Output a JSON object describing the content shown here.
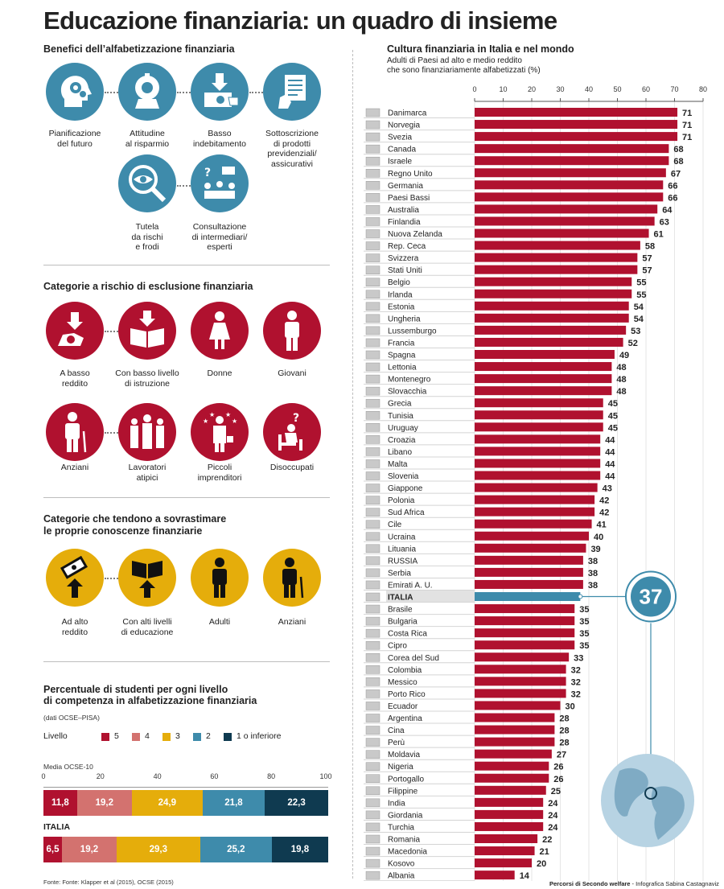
{
  "title": "Educazione finanziaria: un quadro di insieme",
  "benefits": {
    "title": "Benefici dell’alfabetizzazione finanziaria",
    "items": [
      {
        "label": "Pianificazione\ndel futuro",
        "icon": "head-gears-icon"
      },
      {
        "label": "Attitudine\nal risparmio",
        "icon": "piggy-bank-icon"
      },
      {
        "label": "Basso\nindebitamento",
        "icon": "hand-banknote-icon"
      },
      {
        "label": "Sottoscrizione\ndi prodotti\nprevidenziali/\nassicurativi",
        "icon": "document-contract-icon"
      },
      {
        "label": "Tutela\nda rischi\ne frodi",
        "icon": "magnifier-eye-icon"
      },
      {
        "label": "Consultazione\ndi intermediari/\nesperti",
        "icon": "consultation-meeting-icon"
      }
    ]
  },
  "risk": {
    "title": "Categorie a rischio di esclusione finanziaria",
    "items": [
      {
        "label": "A basso\nreddito",
        "icon": "hand-coin-icon"
      },
      {
        "label": "Con basso livello\ndi istruzione",
        "icon": "open-book-icon"
      },
      {
        "label": "Donne",
        "icon": "woman-icon"
      },
      {
        "label": "Giovani",
        "icon": "young-person-icon"
      },
      {
        "label": "Anziani",
        "icon": "elderly-cane-icon"
      },
      {
        "label": "Lavoratori\natipici",
        "icon": "workers-group-icon"
      },
      {
        "label": "Piccoli\nimprenditori",
        "icon": "entrepreneur-stars-icon"
      },
      {
        "label": "Disoccupati",
        "icon": "unemployed-question-icon"
      }
    ]
  },
  "overestimate": {
    "title_line1": "Categorie che tendono a sovrastimare",
    "title_line2": "le proprie conoscenze finanziarie",
    "items": [
      {
        "label": "Ad alto\nreddito",
        "icon": "banknotes-up-icon"
      },
      {
        "label": "Con alti livelli\ndi educazione",
        "icon": "book-up-icon"
      },
      {
        "label": "Adulti",
        "icon": "adult-person-icon"
      },
      {
        "label": "Anziani",
        "icon": "elderly-cane-icon"
      }
    ]
  },
  "students": {
    "title_line1": "Percentuale di studenti per ogni livello",
    "title_line2": "di competenza in alfabetizzazione finanziaria",
    "note": "(dati OCSE–PISA)",
    "legend_label": "Livello",
    "levels": [
      {
        "name": "5",
        "color": "#b0112f"
      },
      {
        "name": "4",
        "color": "#d3726f"
      },
      {
        "name": "3",
        "color": "#e5ad0b"
      },
      {
        "name": "2",
        "color": "#3e8bab"
      },
      {
        "name": "1 o inferiore",
        "color": "#0f3a50"
      }
    ],
    "axis_ticks": [
      "0",
      "20",
      "40",
      "60",
      "80",
      "100"
    ],
    "rows": [
      {
        "label": "Media OCSE-10",
        "values": [
          11.8,
          19.2,
          24.9,
          21.8,
          22.3
        ],
        "texts": [
          "11,8",
          "19,2",
          "24,9",
          "21,8",
          "22,3"
        ]
      },
      {
        "label": "ITALIA",
        "values": [
          6.5,
          19.2,
          29.3,
          25.2,
          19.8
        ],
        "texts": [
          "6,5",
          "19,2",
          "29,3",
          "25,2",
          "19,8"
        ]
      }
    ]
  },
  "source": "Fonte: Fonte: Klapper et al (2015), OCSE (2015)",
  "credit_bold": "Percorsi di Secondo welfare",
  "credit_rest": " - Infografica Sabina Castagnaviz",
  "chart_data": {
    "type": "bar",
    "orientation": "horizontal",
    "title": "Cultura finanziaria in Italia e nel mondo",
    "subtitle_line1": "Adulti di Paesi ad alto e medio reddito",
    "subtitle_line2": "che sono finanziariamente alfabetizzati (%)",
    "xlim": [
      0,
      80
    ],
    "x_ticks": [
      0,
      10,
      20,
      30,
      40,
      50,
      60,
      70,
      80
    ],
    "highlight": "ITALIA",
    "highlight_value_label": "37",
    "bar_color": "#b0112f",
    "highlight_color": "#3e8bab",
    "categories": [
      "Danimarca",
      "Norvegia",
      "Svezia",
      "Canada",
      "Israele",
      "Regno Unito",
      "Germania",
      "Paesi Bassi",
      "Australia",
      "Finlandia",
      "Nuova Zelanda",
      "Rep. Ceca",
      "Svizzera",
      "Stati Uniti",
      "Belgio",
      "Irlanda",
      "Estonia",
      "Ungheria",
      "Lussemburgo",
      "Francia",
      "Spagna",
      "Lettonia",
      "Montenegro",
      "Slovacchia",
      "Grecia",
      "Tunisia",
      "Uruguay",
      "Croazia",
      "Libano",
      "Malta",
      "Slovenia",
      "Giappone",
      "Polonia",
      "Sud Africa",
      "Cile",
      "Ucraina",
      "Lituania",
      "RUSSIA",
      "Serbia",
      "Emirati A. U.",
      "ITALIA",
      "Brasile",
      "Bulgaria",
      "Costa Rica",
      "Cipro",
      "Corea del Sud",
      "Colombia",
      "Messico",
      "Porto Rico",
      "Ecuador",
      "Argentina",
      "Cina",
      "Perù",
      "Moldavia",
      "Nigeria",
      "Portogallo",
      "Filippine",
      "India",
      "Giordania",
      "Turchia",
      "Romania",
      "Macedonia",
      "Kosovo",
      "Albania"
    ],
    "values": [
      71,
      71,
      71,
      68,
      68,
      67,
      66,
      66,
      64,
      63,
      61,
      58,
      57,
      57,
      55,
      55,
      54,
      54,
      53,
      52,
      49,
      48,
      48,
      48,
      45,
      45,
      45,
      44,
      44,
      44,
      44,
      43,
      42,
      42,
      41,
      40,
      39,
      38,
      38,
      38,
      37,
      35,
      35,
      35,
      35,
      33,
      32,
      32,
      32,
      30,
      28,
      28,
      28,
      27,
      26,
      26,
      25,
      24,
      24,
      24,
      22,
      21,
      20,
      14
    ]
  }
}
